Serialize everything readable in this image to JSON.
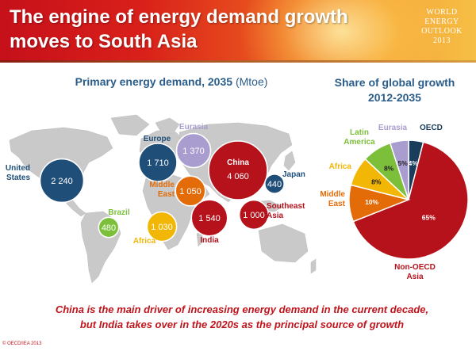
{
  "header": {
    "title_line1": "The engine of energy demand growth",
    "title_line2": "moves to South Asia",
    "logo_lines": [
      "WORLD",
      "ENERGY",
      "OUTLOOK",
      "2013"
    ]
  },
  "colors": {
    "text_blue": "#2a5d8a",
    "accent_red": "#c0141c",
    "region_blue": "#1f4e79",
    "region_red": "#b5121b",
    "region_orange": "#e36c09",
    "region_yellow": "#f2b705",
    "region_green": "#7bbf3a",
    "region_lavender": "#a99ccf",
    "region_navy": "#1b3d5c"
  },
  "chart_data": [
    {
      "type": "bubble_map",
      "title": "Primary energy demand, 2035",
      "unit": "(Mtoe)",
      "regions": [
        {
          "name": "United States",
          "value": "2 240",
          "numeric": 2240,
          "color": "#1f4e79"
        },
        {
          "name": "Europe",
          "value": "1 710",
          "numeric": 1710,
          "color": "#1f4e79"
        },
        {
          "name": "Eurasia",
          "value": "1 370",
          "numeric": 1370,
          "color": "#a99ccf"
        },
        {
          "name": "China",
          "value": "4 060",
          "numeric": 4060,
          "color": "#b5121b"
        },
        {
          "name": "Japan",
          "value": "440",
          "numeric": 440,
          "color": "#1f4e79"
        },
        {
          "name": "Middle East",
          "value": "1 050",
          "numeric": 1050,
          "color": "#e36c09"
        },
        {
          "name": "India",
          "value": "1 540",
          "numeric": 1540,
          "color": "#b5121b"
        },
        {
          "name": "Southeast Asia",
          "value": "1 000",
          "numeric": 1000,
          "color": "#b5121b"
        },
        {
          "name": "Brazil",
          "value": "480",
          "numeric": 480,
          "color": "#7bbf3a"
        },
        {
          "name": "Africa",
          "value": "1 030",
          "numeric": 1030,
          "color": "#f2b705"
        }
      ]
    },
    {
      "type": "pie",
      "title_line1": "Share of global growth",
      "title_line2": "2012-2035",
      "slices": [
        {
          "name": "OECD",
          "value": 4,
          "label": "4%",
          "color": "#1b3d5c"
        },
        {
          "name": "Non-OECD Asia",
          "value": 65,
          "label": "65%",
          "color": "#b5121b"
        },
        {
          "name": "Middle East",
          "value": 10,
          "label": "10%",
          "color": "#e36c09"
        },
        {
          "name": "Africa",
          "value": 8,
          "label": "8%",
          "color": "#f2b705"
        },
        {
          "name": "Latin America",
          "value": 8,
          "label": "8%",
          "color": "#7bbf3a"
        },
        {
          "name": "Eurasia",
          "value": 5,
          "label": "5%",
          "color": "#a99ccf"
        }
      ]
    }
  ],
  "caption": {
    "line1": "China is the main driver of increasing energy demand in the current decade,",
    "line2": "but India takes over in the 2020s as the principal source of growth"
  },
  "copyright": "© OECD/IEA 2013"
}
